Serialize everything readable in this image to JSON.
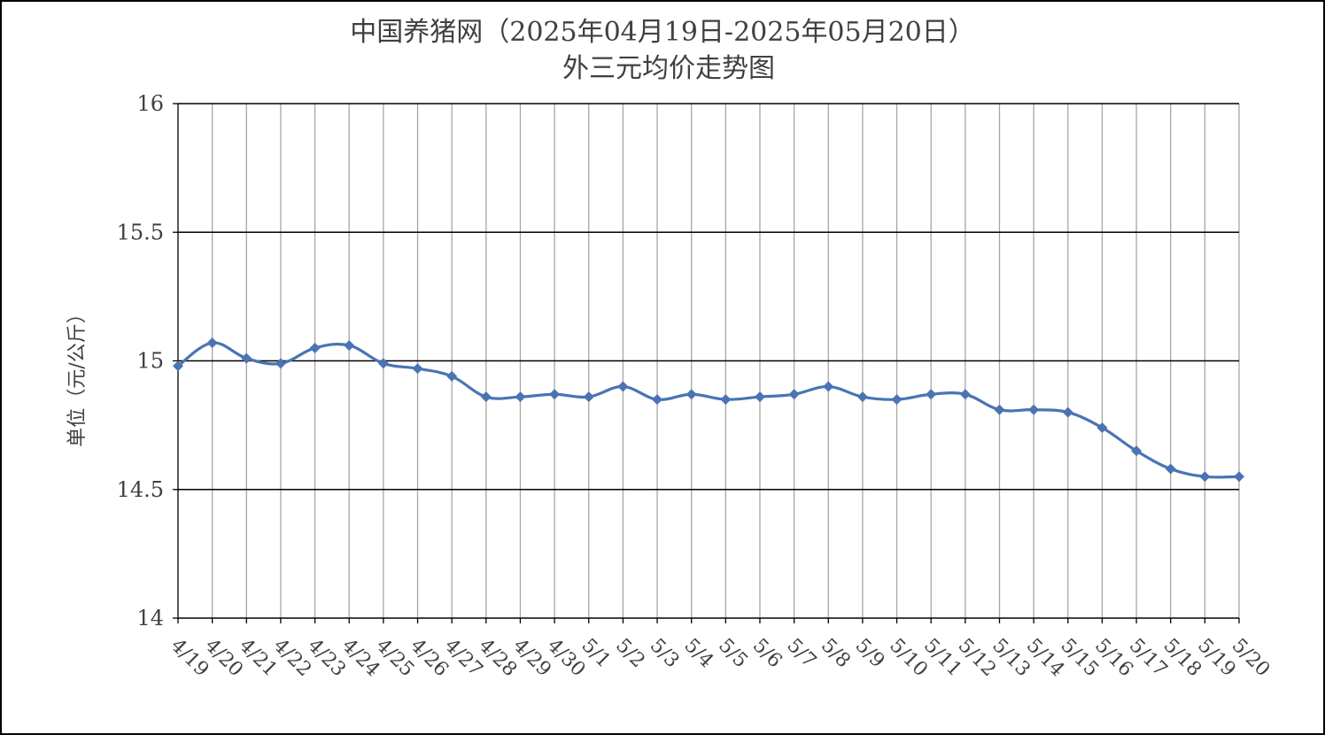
{
  "chart_data": {
    "type": "line",
    "title_line1": "中国养猪网（2025年04月19日-2025年05月20日）",
    "title_line2": "外三元均价走势图",
    "ylabel": "单位（元/公斤）",
    "xlabel": "",
    "ylim": [
      14,
      16
    ],
    "yticks": [
      "14",
      "14.5",
      "15",
      "15.5",
      "16"
    ],
    "grid": "on",
    "categories": [
      "4/19",
      "4/20",
      "4/21",
      "4/22",
      "4/23",
      "4/24",
      "4/25",
      "4/26",
      "4/27",
      "4/28",
      "4/29",
      "4/30",
      "5/1",
      "5/2",
      "5/3",
      "5/4",
      "5/5",
      "5/6",
      "5/7",
      "5/8",
      "5/9",
      "5/10",
      "5/11",
      "5/12",
      "5/13",
      "5/14",
      "5/15",
      "5/16",
      "5/17",
      "5/18",
      "5/19",
      "5/20"
    ],
    "series": [
      {
        "values": [
          14.98,
          15.07,
          15.01,
          14.99,
          15.05,
          15.06,
          14.99,
          14.97,
          14.94,
          14.86,
          14.86,
          14.87,
          14.86,
          14.9,
          14.85,
          14.87,
          14.85,
          14.86,
          14.87,
          14.9,
          14.86,
          14.85,
          14.87,
          14.87,
          14.81,
          14.81,
          14.8,
          14.74,
          14.65,
          14.58,
          14.55,
          14.55
        ],
        "color": "#4a74b3",
        "marker": "diamond"
      }
    ]
  }
}
